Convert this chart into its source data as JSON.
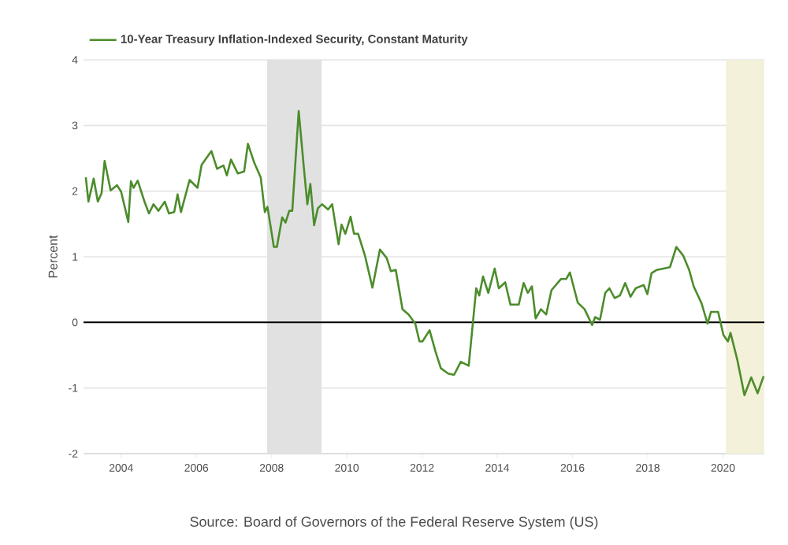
{
  "chart_data": {
    "type": "line",
    "ylabel": "Percent",
    "legend": "top left",
    "grid": "y",
    "marker": "none",
    "line_style": "solid",
    "xlim": [
      2003.0,
      2021.1
    ],
    "xticks": [
      2004,
      2006,
      2008,
      2010,
      2012,
      2014,
      2016,
      2018,
      2020
    ],
    "ylim": [
      -2,
      4
    ],
    "yticks": [
      -2,
      -1,
      0,
      1,
      2,
      3,
      4
    ],
    "x": [
      2003.06,
      2003.13,
      2003.27,
      2003.38,
      2003.48,
      2003.56,
      2003.72,
      2003.89,
      2004.0,
      2004.19,
      2004.26,
      2004.33,
      2004.44,
      2004.62,
      2004.74,
      2004.86,
      2004.99,
      2005.16,
      2005.27,
      2005.41,
      2005.5,
      2005.59,
      2005.82,
      2006.03,
      2006.14,
      2006.4,
      2006.55,
      2006.72,
      2006.81,
      2006.92,
      2007.1,
      2007.27,
      2007.37,
      2007.54,
      2007.71,
      2007.82,
      2007.89,
      2008.06,
      2008.14,
      2008.28,
      2008.37,
      2008.47,
      2008.55,
      2008.72,
      2008.86,
      2008.95,
      2009.03,
      2009.13,
      2009.23,
      2009.34,
      2009.5,
      2009.61,
      2009.78,
      2009.86,
      2009.96,
      2010.1,
      2010.19,
      2010.3,
      2010.48,
      2010.68,
      2010.88,
      2011.06,
      2011.17,
      2011.3,
      2011.48,
      2011.64,
      2011.82,
      2011.93,
      2012.01,
      2012.2,
      2012.36,
      2012.5,
      2012.69,
      2012.85,
      2013.03,
      2013.24,
      2013.44,
      2013.52,
      2013.62,
      2013.76,
      2013.93,
      2014.04,
      2014.21,
      2014.35,
      2014.57,
      2014.7,
      2014.81,
      2014.92,
      2015.02,
      2015.16,
      2015.3,
      2015.44,
      2015.69,
      2015.83,
      2015.93,
      2016.14,
      2016.32,
      2016.52,
      2016.6,
      2016.73,
      2016.87,
      2016.98,
      2017.12,
      2017.26,
      2017.4,
      2017.54,
      2017.68,
      2017.89,
      2017.99,
      2018.1,
      2018.24,
      2018.42,
      2018.59,
      2018.76,
      2018.94,
      2019.1,
      2019.22,
      2019.43,
      2019.59,
      2019.68,
      2019.87,
      2020.01,
      2020.13,
      2020.2,
      2020.38,
      2020.57,
      2020.75,
      2020.92,
      2021.08
    ],
    "series": [
      {
        "name": "10-Year Treasury Inflation-Indexed Security, Constant Maturity",
        "color": "#4c8c2b",
        "values": [
          2.21,
          1.84,
          2.19,
          1.84,
          1.97,
          2.46,
          2.01,
          2.09,
          1.99,
          1.53,
          2.15,
          2.05,
          2.16,
          1.84,
          1.66,
          1.8,
          1.7,
          1.84,
          1.66,
          1.68,
          1.95,
          1.68,
          2.17,
          2.05,
          2.4,
          2.61,
          2.34,
          2.39,
          2.24,
          2.48,
          2.27,
          2.3,
          2.72,
          2.43,
          2.21,
          1.68,
          1.76,
          1.15,
          1.15,
          1.6,
          1.52,
          1.7,
          1.7,
          3.22,
          2.34,
          1.8,
          2.11,
          1.48,
          1.74,
          1.8,
          1.72,
          1.8,
          1.19,
          1.49,
          1.35,
          1.61,
          1.35,
          1.35,
          1.02,
          0.53,
          1.11,
          0.98,
          0.78,
          0.8,
          0.2,
          0.12,
          -0.02,
          -0.29,
          -0.29,
          -0.12,
          -0.45,
          -0.7,
          -0.78,
          -0.8,
          -0.6,
          -0.66,
          0.52,
          0.41,
          0.7,
          0.45,
          0.82,
          0.52,
          0.61,
          0.27,
          0.27,
          0.6,
          0.45,
          0.55,
          0.06,
          0.2,
          0.12,
          0.49,
          0.66,
          0.66,
          0.76,
          0.3,
          0.2,
          -0.04,
          0.08,
          0.04,
          0.45,
          0.52,
          0.37,
          0.41,
          0.6,
          0.39,
          0.52,
          0.57,
          0.43,
          0.75,
          0.8,
          0.82,
          0.84,
          1.15,
          1.02,
          0.8,
          0.55,
          0.29,
          -0.02,
          0.16,
          0.16,
          -0.19,
          -0.29,
          -0.16,
          -0.57,
          -1.11,
          -0.84,
          -1.08,
          -0.82
        ]
      }
    ],
    "bands": [
      {
        "axis": "x",
        "from": 2007.88,
        "to": 2009.33,
        "color": "#e1e1e1"
      },
      {
        "axis": "x",
        "from": 2020.08,
        "to": 2021.1,
        "color": "#f3f1da"
      }
    ],
    "ref_lines": [
      {
        "axis": "y",
        "value": 0,
        "color": "#000000"
      }
    ],
    "annotations": [
      "Source: Board of Governors of the Federal Reserve System (US)"
    ]
  }
}
